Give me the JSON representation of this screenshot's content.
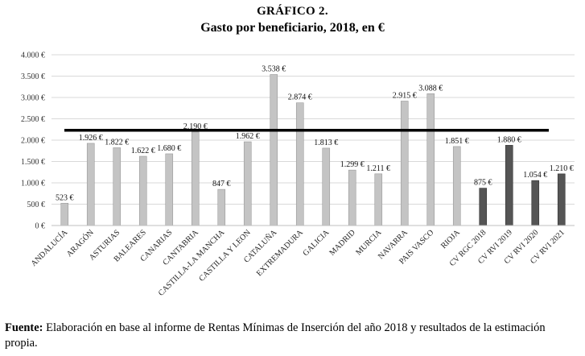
{
  "chart_data": {
    "type": "bar",
    "label": "GRÁFICO 2.",
    "title": "Gasto por beneficiario, 2018, en €",
    "categories": [
      "ANDALUCÍA",
      "ARAGÓN",
      "ASTURIAS",
      "BALEARES",
      "CANARIAS",
      "CANTABRIA",
      "CASTILLA-LA MANCHA",
      "CASTILLA Y LEON",
      "CATALUÑA",
      "EXTREMADURA",
      "GALICIA",
      "MADRID",
      "MURCIA",
      "NAVARRA",
      "PAIS VASCO",
      "RIOJA",
      "CV RGC 2018",
      "CV RVI 2019",
      "CV RVI 2020",
      "CV RVI 2021"
    ],
    "values": [
      523,
      1926,
      1822,
      1622,
      1680,
      2190,
      847,
      1962,
      3538,
      2874,
      1813,
      1299,
      1211,
      2915,
      3088,
      1851,
      875,
      1880,
      1054,
      1210
    ],
    "value_labels": [
      "523 €",
      "1.926 €",
      "1.822 €",
      "1.622 €",
      "1.680 €",
      "2.190 €",
      "847 €",
      "1.962 €",
      "3.538 €",
      "2.874 €",
      "1.813 €",
      "1.299 €",
      "1.211 €",
      "2.915 €",
      "3.088 €",
      "1.851 €",
      "875 €",
      "1.880 €",
      "1.054 €",
      "1.210 €"
    ],
    "highlight_from_index": 16,
    "reference_line_value": 2230,
    "ylim": [
      0,
      4000
    ],
    "yticks": [
      0,
      500,
      1000,
      1500,
      2000,
      2500,
      3000,
      3500,
      4000
    ],
    "ytick_labels": [
      "0 €",
      "500 €",
      "1.000 €",
      "1.500 €",
      "2.000 €",
      "2.500 €",
      "3.000 €",
      "3.500 €",
      "4.000 €"
    ],
    "grid": true,
    "colors": {
      "bar": "#c4c4c4",
      "bar_highlight": "#555555",
      "bar_edge": "#9a9a9a",
      "grid": "#d9d9d9",
      "reference_line": "#000000"
    }
  },
  "footer": {
    "source_label": "Fuente:",
    "source_text": " Elaboración en base al informe de Rentas Mínimas de Inserción del año 2018 y resultados de la estimación propia."
  }
}
